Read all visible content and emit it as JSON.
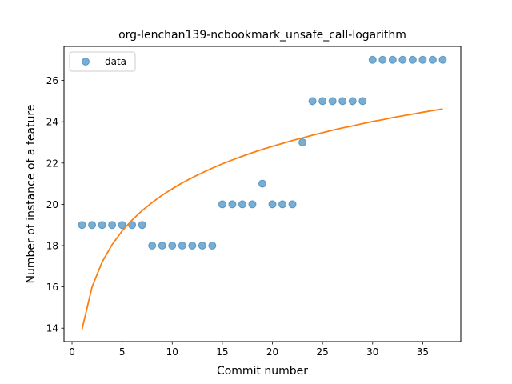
{
  "chart_data": {
    "type": "scatter",
    "title": "org-lenchan139-ncbookmark_unsafe_call-logarithm",
    "xlabel": "Commit number",
    "ylabel": "Number of instance of a feature",
    "xlim": [
      -0.8,
      38.8
    ],
    "ylim": [
      13.35,
      27.65
    ],
    "xticks": [
      0,
      5,
      10,
      15,
      20,
      25,
      30,
      35
    ],
    "yticks": [
      14,
      16,
      18,
      20,
      22,
      24,
      26
    ],
    "grid": false,
    "legend": {
      "placement": "upper-left",
      "entries": [
        "data"
      ]
    },
    "series": [
      {
        "name": "data",
        "kind": "scatter",
        "color": "#1f77b4",
        "x": [
          1,
          2,
          3,
          4,
          5,
          6,
          7,
          8,
          9,
          10,
          11,
          12,
          13,
          14,
          15,
          16,
          17,
          18,
          19,
          20,
          21,
          22,
          23,
          24,
          25,
          26,
          27,
          28,
          29,
          30,
          31,
          32,
          33,
          34,
          35,
          36,
          37
        ],
        "y": [
          19,
          19,
          19,
          19,
          19,
          19,
          19,
          18,
          18,
          18,
          18,
          18,
          18,
          18,
          20,
          20,
          20,
          20,
          21,
          20,
          20,
          20,
          23,
          25,
          25,
          25,
          25,
          25,
          25,
          27,
          27,
          27,
          27,
          27,
          27,
          27,
          27
        ]
      },
      {
        "kind": "line",
        "color": "#ff7f0e",
        "x": [
          1,
          2,
          3,
          4,
          5,
          6,
          7,
          8,
          9,
          10,
          11,
          12,
          13,
          14,
          15,
          16,
          17,
          18,
          19,
          20,
          21,
          22,
          23,
          24,
          25,
          26,
          27,
          28,
          29,
          30,
          31,
          32,
          33,
          34,
          35,
          36,
          37
        ],
        "y": [
          13.95,
          16.0,
          17.2,
          18.05,
          18.71,
          19.24,
          19.7,
          20.09,
          20.44,
          20.75,
          21.04,
          21.29,
          21.53,
          21.75,
          21.96,
          22.15,
          22.33,
          22.5,
          22.66,
          22.81,
          22.95,
          23.09,
          23.22,
          23.35,
          23.47,
          23.59,
          23.7,
          23.8,
          23.91,
          24.01,
          24.1,
          24.2,
          24.29,
          24.37,
          24.46,
          24.54,
          24.62
        ]
      }
    ]
  }
}
